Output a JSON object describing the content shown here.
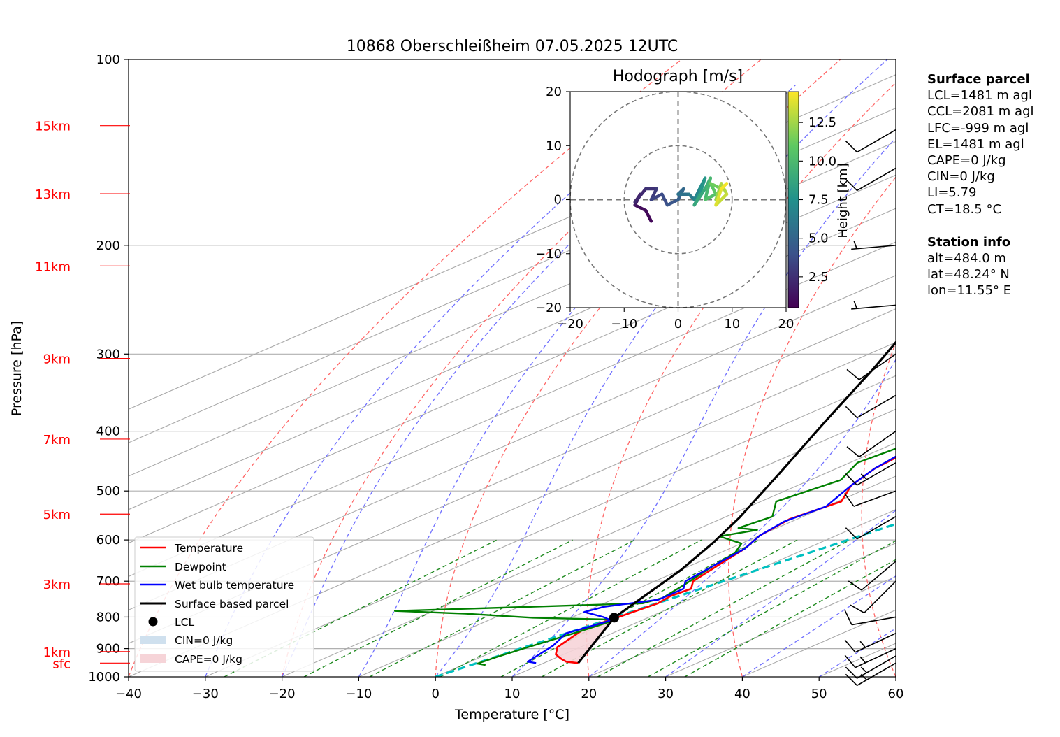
{
  "title": "10868 Oberschleißheim 07.05.2025 12UTC",
  "colors": {
    "temperature": "#ff0000",
    "dewpoint": "#008000",
    "wetbulb": "#0000ff",
    "parcel": "#000000",
    "height_labels": "#ff0000",
    "mixing_ratio": "#00c0c0",
    "dry_adiabat": "#ff6666",
    "moist_adiabat": "#7070ff",
    "cin": "#cfe0ee",
    "cape": "#f6d4d8"
  },
  "chart_data": {
    "type": "line",
    "subtype": "skew-T log-p",
    "title": "10868 Oberschleißheim 07.05.2025 12UTC",
    "xlabel": "Temperature [°C]",
    "ylabel": "Pressure [hPa]",
    "xlim": [
      -40,
      60
    ],
    "ylim": [
      1000,
      100
    ],
    "y_scale": "log",
    "grid": true,
    "xticks": [
      "−40",
      "−30",
      "−20",
      "−10",
      "0",
      "10",
      "20",
      "30",
      "40",
      "50",
      "60"
    ],
    "yticks": [
      "100",
      "200",
      "300",
      "400",
      "500",
      "600",
      "700",
      "800",
      "900",
      "1000"
    ],
    "height_labels": [
      {
        "label": "15km",
        "p": 128
      },
      {
        "label": "13km",
        "p": 165
      },
      {
        "label": "11km",
        "p": 216
      },
      {
        "label": "9km",
        "p": 305
      },
      {
        "label": "7km",
        "p": 412
      },
      {
        "label": "5km",
        "p": 545
      },
      {
        "label": "3km",
        "p": 707
      },
      {
        "label": "1km",
        "p": 910
      },
      {
        "label": "sfc",
        "p": 950
      }
    ],
    "series": [
      {
        "name": "Temperature",
        "color": "#ff0000",
        "points": [
          [
            14.5,
            950
          ],
          [
            12.5,
            945
          ],
          [
            11,
            935
          ],
          [
            9,
            920
          ],
          [
            7,
            895
          ],
          [
            5,
            835
          ],
          [
            6,
            800
          ],
          [
            7,
            760
          ],
          [
            6.5,
            740
          ],
          [
            7,
            720
          ],
          [
            5,
            700
          ],
          [
            3.5,
            660
          ],
          [
            2,
            620
          ],
          [
            0,
            590
          ],
          [
            -1,
            555
          ],
          [
            0.5,
            520
          ],
          [
            -3,
            490
          ],
          [
            -5,
            460
          ],
          [
            -6,
            425
          ],
          [
            -9,
            395
          ],
          [
            -12,
            362
          ],
          [
            -16,
            330
          ],
          [
            -19,
            298
          ],
          [
            -22,
            272
          ],
          [
            -23,
            252
          ],
          [
            -20,
            228
          ],
          [
            -16,
            212
          ],
          [
            -12,
            203
          ],
          [
            -8,
            196
          ],
          [
            -7,
            190
          ],
          [
            -5,
            180
          ],
          [
            -2,
            168
          ],
          [
            -1,
            160
          ],
          [
            0,
            152
          ],
          [
            1,
            143
          ],
          [
            2,
            137
          ],
          [
            5,
            132
          ],
          [
            8,
            125
          ]
        ]
      },
      {
        "name": "Dewpoint",
        "color": "#008000",
        "points": [
          [
            3,
            957
          ],
          [
            1.5,
            952
          ],
          [
            2,
            930
          ],
          [
            3,
            900
          ],
          [
            5,
            850
          ],
          [
            6.5,
            808
          ],
          [
            -5,
            802
          ],
          [
            -15,
            790
          ],
          [
            -25,
            782
          ],
          [
            5,
            760
          ],
          [
            6,
            745
          ],
          [
            5,
            712
          ],
          [
            3,
            660
          ],
          [
            2,
            630
          ],
          [
            0,
            608
          ],
          [
            -5,
            592
          ],
          [
            -2,
            578
          ],
          [
            -5,
            574
          ],
          [
            -4,
            550
          ],
          [
            -8,
            520
          ],
          [
            -6,
            480
          ],
          [
            -9,
            450
          ],
          [
            -8,
            420
          ],
          [
            -12,
            402
          ],
          [
            -11,
            372
          ],
          [
            -16,
            350
          ],
          [
            -18,
            318
          ],
          [
            -22,
            295
          ],
          [
            -24,
            280
          ],
          [
            -22,
            260
          ],
          [
            -28,
            240
          ],
          [
            -26,
            225
          ],
          [
            -32,
            212
          ],
          [
            -35,
            205
          ],
          [
            -33,
            198
          ],
          [
            -36,
            192
          ],
          [
            -36,
            183
          ],
          [
            -37,
            172
          ],
          [
            -35,
            150
          ],
          [
            -32,
            140
          ],
          [
            -25,
            131
          ],
          [
            -23,
            128
          ]
        ]
      },
      {
        "name": "Wet bulb temperature",
        "color": "#0000ff",
        "points": [
          [
            9,
            950
          ],
          [
            7.5,
            945
          ],
          [
            6,
            890
          ],
          [
            4,
            850
          ],
          [
            6,
            810
          ],
          [
            4,
            800
          ],
          [
            0,
            785
          ],
          [
            1,
            770
          ],
          [
            6,
            750
          ],
          [
            6,
            720
          ],
          [
            4,
            700
          ],
          [
            3,
            660
          ],
          [
            2,
            620
          ],
          [
            0,
            590
          ],
          [
            -1,
            560
          ],
          [
            0,
            530
          ],
          [
            -3,
            490
          ],
          [
            -5,
            460
          ],
          [
            -6.5,
            425
          ],
          [
            -9.5,
            395
          ],
          [
            -12.5,
            362
          ],
          [
            -16.5,
            330
          ],
          [
            -19.5,
            298
          ],
          [
            -22.5,
            272
          ],
          [
            -23.5,
            252
          ],
          [
            -20.5,
            228
          ],
          [
            -16.5,
            212
          ],
          [
            -12.5,
            203
          ],
          [
            -8.5,
            196
          ],
          [
            -7.5,
            190
          ],
          [
            -5.5,
            180
          ],
          [
            -2.5,
            168
          ],
          [
            -1.5,
            160
          ],
          [
            -0.5,
            152
          ],
          [
            0.5,
            143
          ],
          [
            1.5,
            137
          ],
          [
            4.5,
            132
          ],
          [
            7.5,
            126
          ]
        ]
      },
      {
        "name": "Surface based parcel",
        "color": "#000000",
        "points": [
          [
            14.5,
            950
          ],
          [
            5.6,
            802
          ],
          [
            3.3,
            745
          ],
          [
            0,
            670
          ],
          [
            -4,
            605
          ],
          [
            -8,
            552
          ],
          [
            -16,
            468
          ],
          [
            -25,
            390
          ],
          [
            -35,
            317
          ],
          [
            -45,
            260
          ],
          [
            -55,
            215
          ],
          [
            -65,
            178
          ],
          [
            -75,
            153
          ]
        ]
      }
    ],
    "lcl": {
      "name": "LCL",
      "t": 5.6,
      "p": 802
    },
    "legend": {
      "position": "lower left",
      "entries": [
        "Temperature",
        "Dewpoint",
        "Wet bulb temperature",
        "Surface based parcel",
        "LCL",
        "CIN=0 J/kg",
        "CAPE=0 J/kg"
      ]
    },
    "wind_barbs": [
      {
        "p": 950,
        "speed_kt": 15,
        "dir": 240
      },
      {
        "p": 925,
        "speed_kt": 15,
        "dir": 240
      },
      {
        "p": 900,
        "speed_kt": 15,
        "dir": 245
      },
      {
        "p": 850,
        "speed_kt": 15,
        "dir": 245
      },
      {
        "p": 800,
        "speed_kt": 10,
        "dir": 260
      },
      {
        "p": 700,
        "speed_kt": 10,
        "dir": 225
      },
      {
        "p": 650,
        "speed_kt": 10,
        "dir": 230
      },
      {
        "p": 550,
        "speed_kt": 10,
        "dir": 240
      },
      {
        "p": 500,
        "speed_kt": 10,
        "dir": 250
      },
      {
        "p": 450,
        "speed_kt": 15,
        "dir": 240
      },
      {
        "p": 400,
        "speed_kt": 10,
        "dir": 235
      },
      {
        "p": 350,
        "speed_kt": 10,
        "dir": 240
      },
      {
        "p": 300,
        "speed_kt": 10,
        "dir": 235
      },
      {
        "p": 250,
        "speed_kt": 5,
        "dir": 265
      },
      {
        "p": 200,
        "speed_kt": 5,
        "dir": 265
      },
      {
        "p": 150,
        "speed_kt": 10,
        "dir": 240
      },
      {
        "p": 130,
        "speed_kt": 10,
        "dir": 240
      }
    ],
    "hodograph": {
      "title": "Hodograph [m/s]",
      "xlim": [
        -20,
        20
      ],
      "ylim": [
        -20,
        20
      ],
      "ticks": [
        "−20",
        "−10",
        "0",
        "10",
        "20"
      ],
      "colorbar": {
        "label": "Height [km]",
        "ticks": [
          "2.5",
          "5.0",
          "7.5",
          "10.0",
          "12.5"
        ],
        "range": [
          0.5,
          14.5
        ],
        "colormap": "viridis"
      },
      "points": [
        [
          -5,
          -4,
          0.5
        ],
        [
          -6,
          -2,
          0.8
        ],
        [
          -8,
          -1,
          1.0
        ],
        [
          -7,
          1,
          1.5
        ],
        [
          -8,
          -0.5,
          1.8
        ],
        [
          -6,
          2,
          2.2
        ],
        [
          -4,
          2,
          2.6
        ],
        [
          -5,
          0,
          3.0
        ],
        [
          -3,
          1,
          3.4
        ],
        [
          -2,
          -1,
          3.8
        ],
        [
          0,
          0,
          4.2
        ],
        [
          1,
          2,
          4.8
        ],
        [
          0,
          1,
          5.2
        ],
        [
          2,
          1,
          5.8
        ],
        [
          3,
          0,
          6.2
        ],
        [
          4,
          2,
          6.8
        ],
        [
          5,
          4,
          7.3
        ],
        [
          4,
          1,
          7.8
        ],
        [
          3,
          -1,
          8.2
        ],
        [
          5,
          2,
          8.8
        ],
        [
          6,
          4,
          9.3
        ],
        [
          5,
          0,
          9.8
        ],
        [
          7,
          1,
          10.3
        ],
        [
          6,
          3,
          10.8
        ],
        [
          8,
          2,
          11.3
        ],
        [
          7,
          0,
          11.8
        ],
        [
          8,
          3,
          12.3
        ],
        [
          9,
          1,
          12.8
        ],
        [
          7,
          -1,
          13.3
        ],
        [
          8,
          2,
          13.8
        ],
        [
          9,
          3,
          14.3
        ]
      ]
    }
  },
  "side_panel": {
    "surface_title": "Surface parcel",
    "surface_lines": [
      "LCL=1481 m agl",
      "CCL=2081 m agl",
      "LFC=-999 m agl",
      "EL=1481 m agl",
      "CAPE=0 J/kg",
      "CIN=0 J/kg",
      "LI=5.79",
      "CT=18.5 °C"
    ],
    "station_title": "Station info",
    "station_lines": [
      "alt=484.0 m",
      "lat=48.24° N",
      "lon=11.55° E"
    ]
  }
}
